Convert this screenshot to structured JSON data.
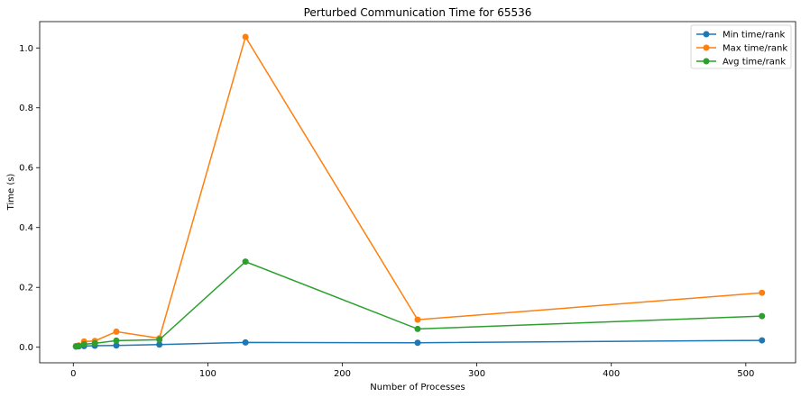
{
  "chart_data": {
    "type": "line",
    "title": "Perturbed Communication Time for 65536",
    "xlabel": "Number of Processes",
    "ylabel": "Time (s)",
    "xlim": [
      -25,
      537
    ],
    "ylim": [
      -0.052,
      1.088
    ],
    "xticks": [
      0,
      100,
      200,
      300,
      400,
      500
    ],
    "yticks": [
      0.0,
      0.2,
      0.4,
      0.6,
      0.8,
      1.0
    ],
    "xtick_labels": [
      "0",
      "100",
      "200",
      "300",
      "400",
      "500"
    ],
    "ytick_labels": [
      "0.0",
      "0.2",
      "0.4",
      "0.6",
      "0.8",
      "1.0"
    ],
    "legend_position": "top-right",
    "grid": false,
    "x": [
      2,
      4,
      8,
      16,
      32,
      64,
      128,
      256,
      512
    ],
    "series": [
      {
        "name": "Min time/rank",
        "color": "#1f77b4",
        "values": [
          0.002,
          0.003,
          0.004,
          0.005,
          0.006,
          0.009,
          0.016,
          0.015,
          0.023
        ]
      },
      {
        "name": "Max time/rank",
        "color": "#ff7f0e",
        "values": [
          0.004,
          0.006,
          0.019,
          0.021,
          0.052,
          0.03,
          1.037,
          0.092,
          0.182
        ]
      },
      {
        "name": "Avg time/rank",
        "color": "#2ca02c",
        "values": [
          0.003,
          0.004,
          0.01,
          0.013,
          0.022,
          0.025,
          0.286,
          0.061,
          0.104
        ]
      }
    ]
  }
}
